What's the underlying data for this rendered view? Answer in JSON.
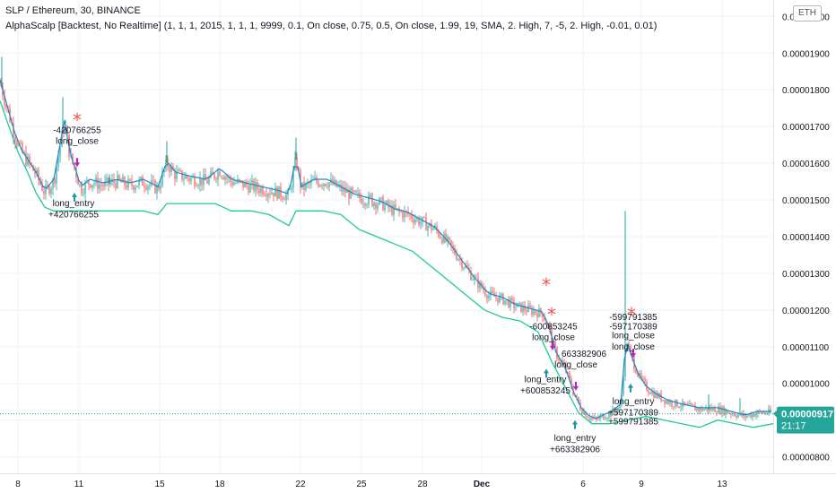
{
  "header": {
    "title": "SLP / Ethereum, 30, BINANCE",
    "indicator": "AlphaScalp [Backtest, No Realtime] (1, 1, 1, 2015, 1, 1, 1, 9999, 0.1, On close, 0.75, 0.5, On close, 1.99, 19, SMA, 2. High, 7, -5, 2. High, -0.01, 0.01)"
  },
  "currency_button": "ETH",
  "colors": {
    "up": "#26a69a",
    "down": "#ef5350",
    "band": "#0f9d58",
    "smooth": "#1e88c8",
    "price_label_bg": "#26a69a",
    "entry_arrow": "#2196a3",
    "exit_arrow": "#c020c0",
    "star": "#ef5350"
  },
  "chart_data": {
    "type": "line",
    "title": "SLP / Ethereum, 30, BINANCE",
    "x_ticks": [
      "8",
      "11",
      "15",
      "18",
      "22",
      "25",
      "28",
      "Dec",
      "6",
      "9",
      "13"
    ],
    "y_ticks": [
      "0.00002000",
      "0.00001900",
      "0.00001800",
      "0.00001700",
      "0.00001600",
      "0.00001500",
      "0.00001400",
      "0.00001300",
      "0.00001200",
      "0.00001100",
      "0.00001000",
      "0.00000900",
      "0.00000800"
    ],
    "ylim": [
      7.55e-06,
      2.04e-05
    ],
    "last_price": "0.00000917",
    "countdown": "21:17",
    "price_points": [
      [
        0,
        1.82e-05
      ],
      [
        8,
        1.75e-05
      ],
      [
        16,
        1.68e-05
      ],
      [
        24,
        1.63e-05
      ],
      [
        32,
        1.6e-05
      ],
      [
        40,
        1.57e-05
      ],
      [
        50,
        1.52e-05
      ],
      [
        60,
        1.55e-05
      ],
      [
        68,
        1.66e-05
      ],
      [
        72,
        1.71e-05
      ],
      [
        78,
        1.62e-05
      ],
      [
        84,
        1.58e-05
      ],
      [
        90,
        1.53e-05
      ],
      [
        100,
        1.55e-05
      ],
      [
        115,
        1.54e-05
      ],
      [
        130,
        1.55e-05
      ],
      [
        145,
        1.54e-05
      ],
      [
        160,
        1.55e-05
      ],
      [
        176,
        1.53e-05
      ],
      [
        186,
        1.6e-05
      ],
      [
        195,
        1.57e-05
      ],
      [
        210,
        1.56e-05
      ],
      [
        230,
        1.55e-05
      ],
      [
        245,
        1.58e-05
      ],
      [
        258,
        1.55e-05
      ],
      [
        275,
        1.54e-05
      ],
      [
        292,
        1.53e-05
      ],
      [
        310,
        1.52e-05
      ],
      [
        322,
        1.51e-05
      ],
      [
        330,
        1.61e-05
      ],
      [
        336,
        1.53e-05
      ],
      [
        350,
        1.55e-05
      ],
      [
        365,
        1.55e-05
      ],
      [
        380,
        1.53e-05
      ],
      [
        395,
        1.51e-05
      ],
      [
        410,
        1.5e-05
      ],
      [
        425,
        1.49e-05
      ],
      [
        440,
        1.47e-05
      ],
      [
        455,
        1.46e-05
      ],
      [
        470,
        1.44e-05
      ],
      [
        485,
        1.42e-05
      ],
      [
        500,
        1.38e-05
      ],
      [
        515,
        1.33e-05
      ],
      [
        530,
        1.28e-05
      ],
      [
        545,
        1.24e-05
      ],
      [
        560,
        1.23e-05
      ],
      [
        575,
        1.21e-05
      ],
      [
        590,
        1.2e-05
      ],
      [
        605,
        1.19e-05
      ],
      [
        612,
        1.15e-05
      ],
      [
        620,
        1.08e-05
      ],
      [
        630,
        1.04e-05
      ],
      [
        640,
        9.7e-06
      ],
      [
        648,
        9.3e-06
      ],
      [
        656,
        9.1e-06
      ],
      [
        664,
        9e-06
      ],
      [
        672,
        9.1e-06
      ],
      [
        682,
        9.2e-06
      ],
      [
        692,
        9.4e-06
      ],
      [
        698,
        1.12e-05
      ],
      [
        704,
        1.07e-05
      ],
      [
        712,
        1.02e-05
      ],
      [
        720,
        9.9e-06
      ],
      [
        730,
        9.7e-06
      ],
      [
        745,
        9.5e-06
      ],
      [
        760,
        9.4e-06
      ],
      [
        780,
        9.3e-06
      ],
      [
        800,
        9.3e-06
      ],
      [
        815,
        9.2e-06
      ],
      [
        830,
        9.1e-06
      ],
      [
        845,
        9.2e-06
      ],
      [
        862,
        9.2e-06
      ]
    ],
    "band_points": [
      [
        0,
        1.77e-05
      ],
      [
        10,
        1.7e-05
      ],
      [
        20,
        1.63e-05
      ],
      [
        30,
        1.58e-05
      ],
      [
        40,
        1.52e-05
      ],
      [
        50,
        1.48e-05
      ],
      [
        60,
        1.47e-05
      ],
      [
        70,
        1.47e-05
      ],
      [
        85,
        1.47e-05
      ],
      [
        100,
        1.47e-05
      ],
      [
        120,
        1.47e-05
      ],
      [
        140,
        1.47e-05
      ],
      [
        160,
        1.47e-05
      ],
      [
        176,
        1.46e-05
      ],
      [
        186,
        1.49e-05
      ],
      [
        200,
        1.49e-05
      ],
      [
        220,
        1.49e-05
      ],
      [
        240,
        1.49e-05
      ],
      [
        258,
        1.47e-05
      ],
      [
        280,
        1.47e-05
      ],
      [
        300,
        1.46e-05
      ],
      [
        322,
        1.43e-05
      ],
      [
        330,
        1.47e-05
      ],
      [
        340,
        1.47e-05
      ],
      [
        360,
        1.47e-05
      ],
      [
        380,
        1.46e-05
      ],
      [
        400,
        1.42e-05
      ],
      [
        420,
        1.4e-05
      ],
      [
        440,
        1.38e-05
      ],
      [
        460,
        1.36e-05
      ],
      [
        480,
        1.32e-05
      ],
      [
        500,
        1.28e-05
      ],
      [
        520,
        1.24e-05
      ],
      [
        540,
        1.2e-05
      ],
      [
        560,
        1.18e-05
      ],
      [
        580,
        1.17e-05
      ],
      [
        600,
        1.14e-05
      ],
      [
        615,
        1.06e-05
      ],
      [
        630,
        9.9e-06
      ],
      [
        645,
        9.2e-06
      ],
      [
        660,
        8.9e-06
      ],
      [
        680,
        8.9e-06
      ],
      [
        700,
        9e-06
      ],
      [
        720,
        9.1e-06
      ],
      [
        740,
        9e-06
      ],
      [
        760,
        8.9e-06
      ],
      [
        780,
        8.8e-06
      ],
      [
        800,
        9e-06
      ],
      [
        820,
        8.9e-06
      ],
      [
        840,
        8.8e-06
      ],
      [
        862,
        8.9e-06
      ]
    ],
    "spikes": [
      [
        2,
        1.89e-05
      ],
      [
        70,
        1.78e-05
      ],
      [
        122,
        1.57e-05
      ],
      [
        186,
        1.66e-05
      ],
      [
        330,
        1.67e-05
      ],
      [
        415,
        1.52e-05
      ],
      [
        697,
        1.47e-05
      ],
      [
        790,
        9.7e-06
      ],
      [
        825,
        9.6e-06
      ]
    ],
    "annotations": [
      {
        "text": "-420766255",
        "x": 86,
        "y": 1.69e-05
      },
      {
        "text": "long_close",
        "x": 86,
        "y": 1.66e-05
      },
      {
        "text": "long_entry",
        "x": 82,
        "y": 1.49e-05
      },
      {
        "text": "+420766255",
        "x": 82,
        "y": 1.46e-05
      },
      {
        "text": "-600853245",
        "x": 617,
        "y": 1.155e-05
      },
      {
        "text": "long_close",
        "x": 617,
        "y": 1.125e-05
      },
      {
        "text": "663382906",
        "x": 651,
        "y": 1.08e-05
      },
      {
        "text": "long_close",
        "x": 642,
        "y": 1.05e-05
      },
      {
        "text": "long_entry",
        "x": 608,
        "y": 1.01e-05
      },
      {
        "text": "+600853245",
        "x": 608,
        "y": 9.8e-06
      },
      {
        "text": "long_entry",
        "x": 641,
        "y": 8.5e-06
      },
      {
        "text": "+663382906",
        "x": 641,
        "y": 8.2e-06
      },
      {
        "text": "-599791385",
        "x": 706,
        "y": 1.18e-05
      },
      {
        "text": "-597170389",
        "x": 706,
        "y": 1.155e-05
      },
      {
        "text": "long_close",
        "x": 706,
        "y": 1.13e-05
      },
      {
        "text": "long_close",
        "x": 706,
        "y": 1.1e-05
      },
      {
        "text": "long_entry",
        "x": 706,
        "y": 9.5e-06
      },
      {
        "text": "+597170389",
        "x": 706,
        "y": 9.2e-06
      },
      {
        "text": "+599791385",
        "x": 706,
        "y": 8.95e-06
      }
    ],
    "stars": [
      [
        86,
        1.72e-05
      ],
      [
        609,
        1.27e-05
      ],
      [
        615,
        1.19e-05
      ],
      [
        704,
        1.19e-05
      ]
    ],
    "entry_arrows": [
      [
        83,
        1.52e-05
      ],
      [
        609,
        1.04e-05
      ],
      [
        641,
        9e-06
      ],
      [
        703,
        1e-05
      ]
    ],
    "exit_arrows": [
      [
        86,
        1.59e-05
      ],
      [
        616,
        1.09e-05
      ],
      [
        642,
        9.8e-06
      ],
      [
        706,
        1.07e-05
      ]
    ]
  }
}
